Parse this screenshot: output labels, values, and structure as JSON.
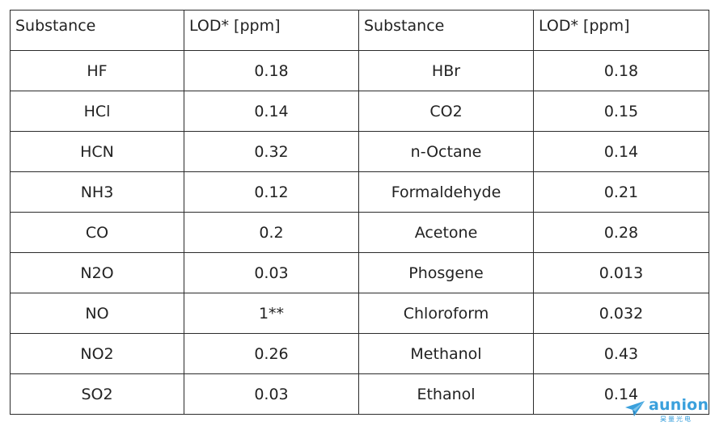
{
  "table": {
    "headers": [
      "Substance",
      "LOD* [ppm]",
      "Substance",
      "LOD* [ppm]"
    ],
    "rows": [
      [
        "HF",
        "0.18",
        "HBr",
        "0.18"
      ],
      [
        "HCl",
        "0.14",
        "CO2",
        "0.15"
      ],
      [
        "HCN",
        "0.32",
        "n-Octane",
        "0.14"
      ],
      [
        "NH3",
        "0.12",
        "Formaldehyde",
        "0.21"
      ],
      [
        "CO",
        "0.2",
        "Acetone",
        "0.28"
      ],
      [
        "N2O",
        "0.03",
        "Phosgene",
        "0.013"
      ],
      [
        "NO",
        "1**",
        "Chloroform",
        "0.032"
      ],
      [
        "NO2",
        "0.26",
        "Methanol",
        "0.43"
      ],
      [
        "SO2",
        "0.03",
        "Ethanol",
        "0.14"
      ]
    ]
  },
  "watermark": {
    "text": "aunion",
    "subtext": "昊量光电",
    "icon": "paper-plane-icon",
    "color": "#3aa0dc"
  }
}
